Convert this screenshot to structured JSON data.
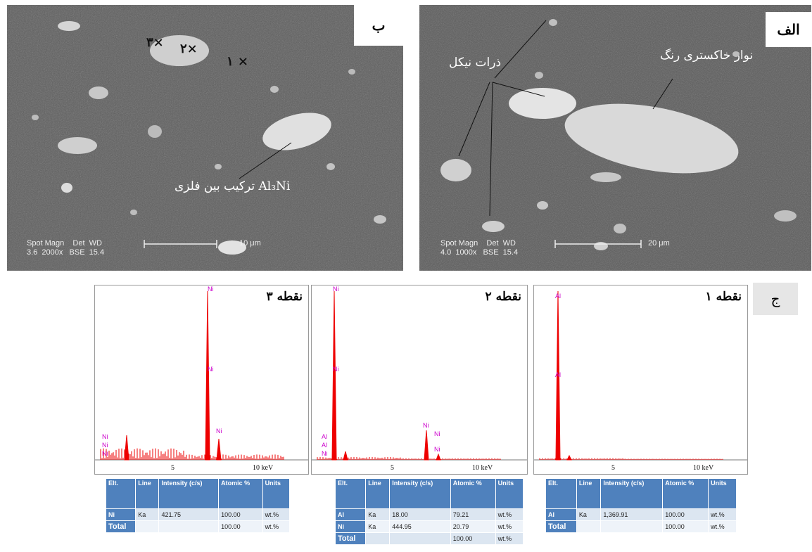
{
  "panel_b": {
    "label": "ب",
    "points": [
      "۳×",
      "۲×",
      "۱ ×"
    ],
    "annotation": "ترکیب بین فلزی Al₃Ni",
    "meta_left": "Spot Magn    Det  WD\n3.6  2000x   BSE  15.4",
    "scale": "10 μm"
  },
  "panel_alef": {
    "label": "الف",
    "annotation_gray": "نوار خاکستری رنگ",
    "annotation_ni": "ذرات نیکل",
    "meta_left": "Spot Magn    Det  WD\n4.0  1000x   BSE  15.4",
    "scale": "20 μm"
  },
  "panel_j_label": "ج",
  "spectra": [
    {
      "title": "نقطه ۳",
      "tick5": "5",
      "tick10": "10 keV",
      "peak_labels": [
        "Ni",
        "Ni",
        "Ni",
        "Ni",
        "Ni",
        "Ni"
      ],
      "table": {
        "headers": [
          "Elt.",
          "Line",
          "Intensity (c/s)",
          "Atomic %",
          "Units"
        ],
        "rows": [
          [
            "Ni",
            "Ka",
            "421.75",
            "100.00",
            "wt.%"
          ],
          [
            "Total",
            "",
            "",
            "100.00",
            "wt.%"
          ]
        ]
      }
    },
    {
      "title": "نقطه ۲",
      "tick5": "5",
      "tick10": "10 keV",
      "peak_labels": [
        "Al",
        "Al",
        "Ni",
        "Ni",
        "Ni",
        "Ni",
        "Ni",
        "Ni"
      ],
      "table": {
        "headers": [
          "Elt.",
          "Line",
          "Intensity (c/s)",
          "Atomic %",
          "Units"
        ],
        "rows": [
          [
            "Al",
            "Ka",
            "18.00",
            "79.21",
            "wt.%"
          ],
          [
            "Ni",
            "Ka",
            "444.95",
            "20.79",
            "wt.%"
          ],
          [
            "Total",
            "",
            "",
            "100.00",
            "wt.%"
          ]
        ]
      }
    },
    {
      "title": "نقطه ۱",
      "tick5": "5",
      "tick10": "10 keV",
      "peak_labels": [
        "Al",
        "Al"
      ],
      "table": {
        "headers": [
          "Elt.",
          "Line",
          "Intensity (c/s)",
          "Atomic %",
          "Units"
        ],
        "rows": [
          [
            "Al",
            "Ka",
            "1,369.91",
            "100.00",
            "wt.%"
          ],
          [
            "Total",
            "",
            "",
            "100.00",
            "wt.%"
          ]
        ]
      }
    }
  ]
}
